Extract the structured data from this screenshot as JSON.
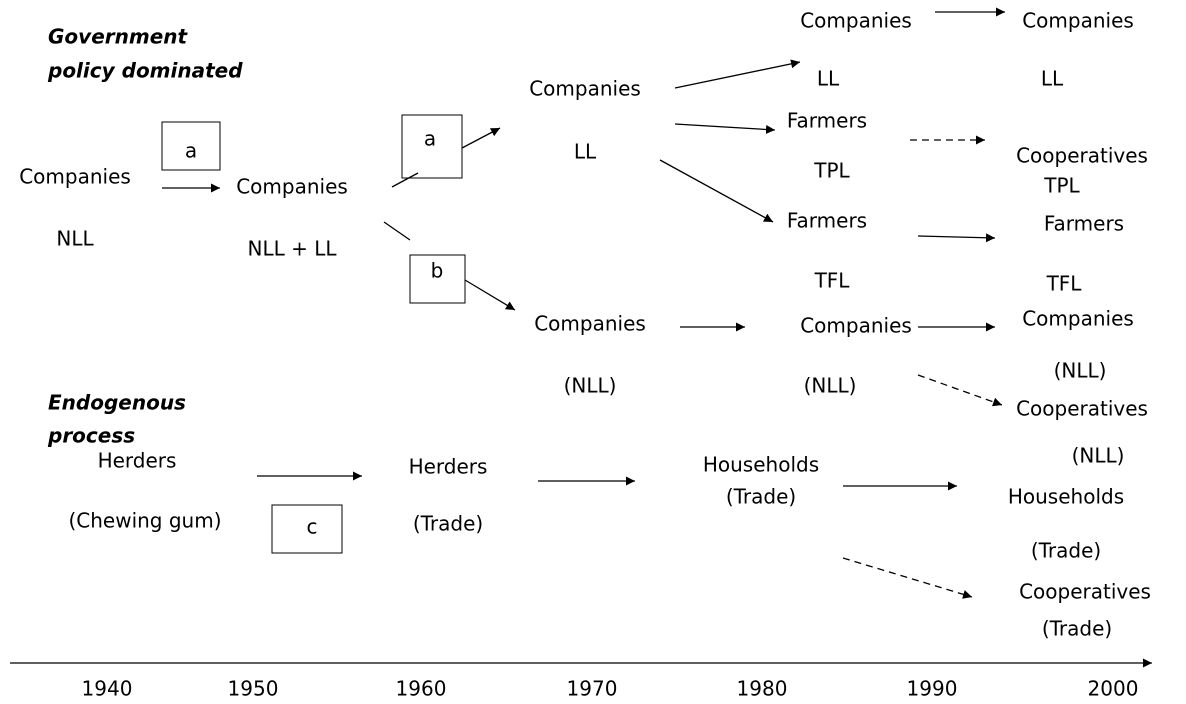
{
  "headings": [
    [
      "Government",
      "policy dominated"
    ],
    [
      "Endogenous",
      "process"
    ]
  ],
  "boxes": [
    "a",
    "a",
    "b",
    "c"
  ],
  "nodes": [
    [
      "Companies",
      "NLL"
    ],
    [
      "Companies",
      "NLL + LL"
    ],
    [
      "Companies",
      "LL"
    ],
    [
      "Companies",
      "LL"
    ],
    [
      "Companies",
      "LL"
    ],
    [
      "Farmers",
      "TPL"
    ],
    [
      "Cooperatives",
      "TPL"
    ],
    [
      "Farmers",
      "TFL"
    ],
    [
      "Farmers",
      "TFL"
    ],
    [
      "Companies",
      "(NLL)"
    ],
    [
      "Companies",
      "(NLL)"
    ],
    [
      "Companies",
      "(NLL)"
    ],
    [
      "Cooperatives",
      "(NLL)"
    ],
    [
      "Herders",
      "(Chewing gum)"
    ],
    [
      "Herders",
      "(Trade)"
    ],
    [
      "Households",
      "(Trade)"
    ],
    [
      "Households",
      "(Trade)"
    ],
    [
      "Cooperatives",
      "(Trade)"
    ]
  ],
  "timeline": [
    "1940",
    "1950",
    "1960",
    "1970",
    "1980",
    "1990",
    "2000"
  ]
}
